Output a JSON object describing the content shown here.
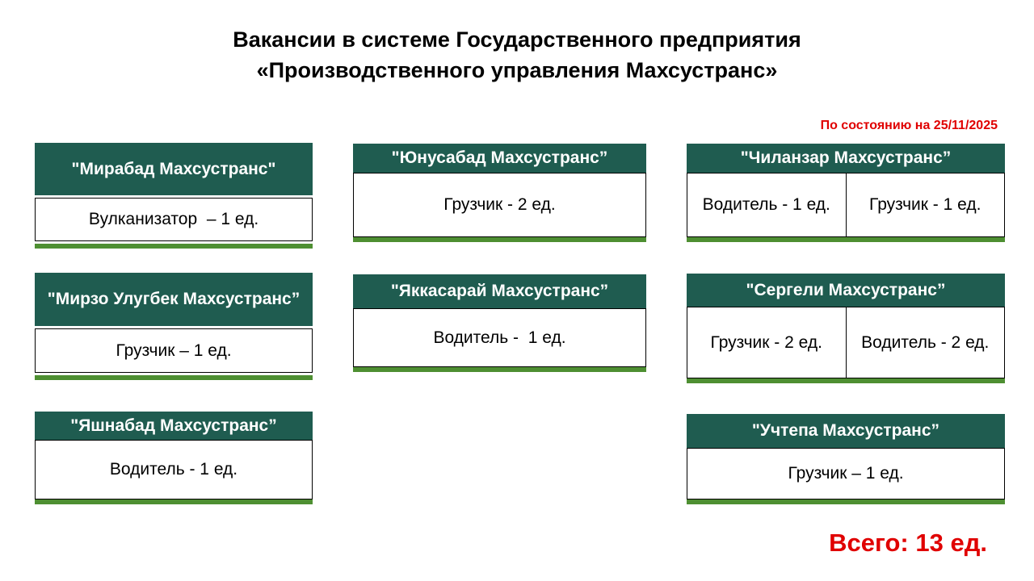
{
  "title_line1": "Вакансии в системе Государственного предприятия",
  "title_line2": "«Производственного управления Махсустранс»",
  "as_of": "По состоянию на 25/11/2025",
  "total": "Всего: 13 ед.",
  "colors": {
    "header": "#1f5c50",
    "accent_bar": "#4e8f32",
    "highlight": "#e00000"
  },
  "cards": [
    {
      "name": "\"Мирабад Махсустранс\"",
      "items": [
        "Вулканизатор  – 1 ед."
      ]
    },
    {
      "name": "\"Мирзо Улугбек Махсустранс”",
      "items": [
        "Грузчик – 1 ед."
      ]
    },
    {
      "name": "\"Яшнабад Махсустранс”",
      "items": [
        "Водитель - 1 ед."
      ]
    },
    {
      "name": "\"Юнусабад Махсустранс”",
      "items": [
        "Грузчик - 2 ед."
      ]
    },
    {
      "name": "\"Яккасарай Махсустранс”",
      "items": [
        "Водитель -  1 ед."
      ]
    },
    {
      "name": "\"Чиланзар Махсустранс”",
      "items": [
        "Водитель - 1 ед.",
        "Грузчик - 1 ед."
      ]
    },
    {
      "name": "\"Сергели Махсустранс”",
      "items": [
        "Грузчик - 2 ед.",
        "Водитель - 2 ед."
      ]
    },
    {
      "name": "\"Учтепа Махсустранс”",
      "items": [
        "Грузчик – 1 ед."
      ]
    }
  ]
}
